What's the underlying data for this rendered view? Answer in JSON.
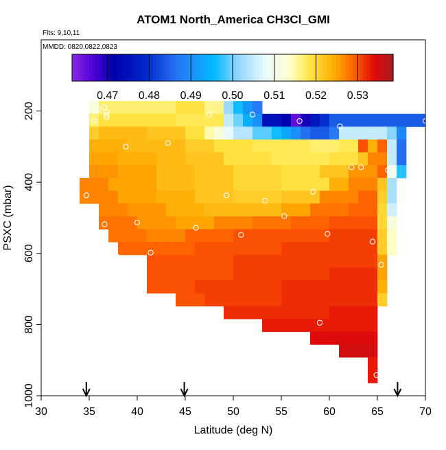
{
  "chart_data": {
    "type": "heatmap",
    "title": "ATOM1 North_America CH3Cl_GMI",
    "flights_label": "Flts: 9,10,11",
    "mmdd_label": "MMDD: 0820,0822,0823",
    "xlabel": "Latitude (deg N)",
    "ylabel": "PSXC (mbar)",
    "xlim": [
      30,
      70
    ],
    "ylim": [
      1000,
      0
    ],
    "x_ticks": [
      30,
      35,
      40,
      45,
      50,
      55,
      60,
      65,
      70
    ],
    "y_ticks": [
      200,
      400,
      600,
      800,
      1000
    ],
    "colorbar": {
      "ticks": [
        "0.47",
        "0.48",
        "0.49",
        "0.50",
        "0.51",
        "0.52",
        "0.53"
      ],
      "tick_values": [
        0.47,
        0.48,
        0.49,
        0.5,
        0.51,
        0.52,
        0.53
      ],
      "range": [
        0.4615,
        0.5385
      ]
    },
    "lat_bin_deg": 1,
    "pressure_bin_mbar": 36,
    "rows": [
      {
        "p": 190,
        "segments": [
          [
            35,
            36,
            0.512
          ],
          [
            36,
            44,
            0.517
          ],
          [
            44,
            47,
            0.519
          ],
          [
            47,
            49,
            0.516
          ],
          [
            49,
            50,
            0.502
          ],
          [
            50,
            51,
            0.496
          ],
          [
            51,
            52,
            0.491
          ],
          [
            52,
            53,
            0.487
          ]
        ]
      },
      {
        "p": 226,
        "segments": [
          [
            35,
            36,
            0.517
          ],
          [
            36,
            44,
            0.519
          ],
          [
            44,
            49,
            0.518
          ],
          [
            49,
            50,
            0.505
          ],
          [
            50,
            51,
            0.5
          ],
          [
            51,
            52,
            0.494
          ],
          [
            52,
            53,
            0.49
          ],
          [
            53,
            55,
            0.475
          ],
          [
            55,
            56,
            0.472
          ],
          [
            56,
            57,
            0.465
          ],
          [
            57,
            58,
            0.47
          ],
          [
            58,
            59,
            0.476
          ],
          [
            59,
            60,
            0.48
          ],
          [
            60,
            70,
            0.484
          ]
        ]
      },
      {
        "p": 262,
        "segments": [
          [
            35,
            36,
            0.521
          ],
          [
            36,
            41,
            0.523
          ],
          [
            41,
            45,
            0.522
          ],
          [
            45,
            47,
            0.519
          ],
          [
            47,
            48,
            0.515
          ],
          [
            48,
            49,
            0.512
          ],
          [
            49,
            50,
            0.508
          ],
          [
            50,
            52,
            0.504
          ],
          [
            52,
            54,
            0.499
          ],
          [
            54,
            55,
            0.496
          ],
          [
            55,
            56,
            0.493
          ],
          [
            56,
            57,
            0.49
          ],
          [
            57,
            58,
            0.486
          ],
          [
            58,
            60,
            0.484
          ],
          [
            60,
            61,
            0.487
          ],
          [
            61,
            66,
            0.505
          ],
          [
            66,
            67,
            0.501
          ],
          [
            67,
            68,
            0.489
          ]
        ]
      },
      {
        "p": 298,
        "segments": [
          [
            35,
            39,
            0.524
          ],
          [
            39,
            45,
            0.523
          ],
          [
            45,
            48,
            0.521
          ],
          [
            48,
            52,
            0.519
          ],
          [
            52,
            58,
            0.518
          ],
          [
            58,
            61,
            0.517
          ],
          [
            61,
            63,
            0.518
          ],
          [
            63,
            64,
            0.53
          ],
          [
            64,
            65,
            0.524
          ],
          [
            65,
            66,
            0.529
          ],
          [
            66,
            67,
            0.505
          ],
          [
            67,
            68,
            0.486
          ]
        ]
      },
      {
        "p": 334,
        "segments": [
          [
            35,
            38,
            0.525
          ],
          [
            38,
            42,
            0.524
          ],
          [
            42,
            45,
            0.523
          ],
          [
            45,
            49,
            0.522
          ],
          [
            49,
            54,
            0.519
          ],
          [
            54,
            60,
            0.518
          ],
          [
            60,
            63,
            0.519
          ],
          [
            63,
            64,
            0.522
          ],
          [
            64,
            66,
            0.527
          ],
          [
            66,
            67,
            0.505
          ],
          [
            67,
            68,
            0.486
          ]
        ]
      },
      {
        "p": 370,
        "segments": [
          [
            35,
            38,
            0.526
          ],
          [
            38,
            42,
            0.525
          ],
          [
            42,
            46,
            0.523
          ],
          [
            46,
            50,
            0.522
          ],
          [
            50,
            55,
            0.52
          ],
          [
            55,
            59,
            0.519
          ],
          [
            59,
            62,
            0.522
          ],
          [
            62,
            65,
            0.526
          ],
          [
            65,
            66,
            0.529
          ],
          [
            66,
            67,
            0.51
          ],
          [
            67,
            68,
            0.497
          ]
        ]
      },
      {
        "p": 406,
        "segments": [
          [
            34,
            37,
            0.527
          ],
          [
            37,
            42,
            0.525
          ],
          [
            42,
            46,
            0.523
          ],
          [
            46,
            50,
            0.522
          ],
          [
            50,
            55,
            0.52
          ],
          [
            55,
            60,
            0.519
          ],
          [
            60,
            62,
            0.524
          ],
          [
            62,
            65,
            0.527
          ],
          [
            65,
            66,
            0.522
          ],
          [
            66,
            67,
            0.503
          ]
        ]
      },
      {
        "p": 442,
        "segments": [
          [
            34,
            38,
            0.527
          ],
          [
            38,
            42,
            0.525
          ],
          [
            42,
            46,
            0.524
          ],
          [
            46,
            50,
            0.522
          ],
          [
            50,
            55,
            0.521
          ],
          [
            55,
            59,
            0.522
          ],
          [
            59,
            63,
            0.527
          ],
          [
            63,
            65,
            0.529
          ],
          [
            65,
            66,
            0.521
          ],
          [
            66,
            67,
            0.503
          ]
        ]
      },
      {
        "p": 478,
        "segments": [
          [
            36,
            39,
            0.527
          ],
          [
            39,
            43,
            0.526
          ],
          [
            43,
            47,
            0.524
          ],
          [
            47,
            51,
            0.523
          ],
          [
            51,
            55,
            0.523
          ],
          [
            55,
            58,
            0.525
          ],
          [
            58,
            62,
            0.528
          ],
          [
            62,
            65,
            0.529
          ],
          [
            65,
            66,
            0.52
          ],
          [
            66,
            67,
            0.506
          ]
        ]
      },
      {
        "p": 514,
        "segments": [
          [
            36,
            40,
            0.528
          ],
          [
            40,
            44,
            0.526
          ],
          [
            44,
            48,
            0.525
          ],
          [
            48,
            52,
            0.527
          ],
          [
            52,
            56,
            0.528
          ],
          [
            56,
            60,
            0.529
          ],
          [
            60,
            65,
            0.53
          ],
          [
            65,
            66,
            0.52
          ],
          [
            66,
            67,
            0.512
          ]
        ]
      },
      {
        "p": 550,
        "segments": [
          [
            37,
            41,
            0.528
          ],
          [
            41,
            45,
            0.527
          ],
          [
            45,
            50,
            0.529
          ],
          [
            50,
            55,
            0.53
          ],
          [
            55,
            60,
            0.53
          ],
          [
            60,
            65,
            0.531
          ],
          [
            65,
            66,
            0.521
          ],
          [
            66,
            67,
            0.514
          ]
        ]
      },
      {
        "p": 586,
        "segments": [
          [
            38,
            41,
            0.529
          ],
          [
            41,
            46,
            0.529
          ],
          [
            46,
            50,
            0.53
          ],
          [
            50,
            55,
            0.53
          ],
          [
            55,
            60,
            0.531
          ],
          [
            60,
            65,
            0.531
          ],
          [
            65,
            66,
            0.521
          ],
          [
            66,
            67,
            0.514
          ]
        ]
      },
      {
        "p": 622,
        "segments": [
          [
            41,
            46,
            0.53
          ],
          [
            46,
            50,
            0.53
          ],
          [
            50,
            55,
            0.531
          ],
          [
            55,
            60,
            0.531
          ],
          [
            60,
            65,
            0.531
          ],
          [
            65,
            66,
            0.525
          ]
        ]
      },
      {
        "p": 658,
        "segments": [
          [
            41,
            46,
            0.53
          ],
          [
            46,
            50,
            0.53
          ],
          [
            50,
            55,
            0.531
          ],
          [
            55,
            60,
            0.531
          ],
          [
            60,
            65,
            0.532
          ],
          [
            65,
            66,
            0.525
          ]
        ]
      },
      {
        "p": 694,
        "segments": [
          [
            41,
            46,
            0.53
          ],
          [
            46,
            50,
            0.531
          ],
          [
            50,
            55,
            0.531
          ],
          [
            55,
            60,
            0.532
          ],
          [
            60,
            65,
            0.532
          ],
          [
            65,
            66,
            0.524
          ]
        ]
      },
      {
        "p": 730,
        "segments": [
          [
            44,
            47,
            0.53
          ],
          [
            47,
            50,
            0.531
          ],
          [
            50,
            55,
            0.531
          ],
          [
            55,
            60,
            0.532
          ],
          [
            60,
            65,
            0.532
          ],
          [
            65,
            66,
            0.521
          ]
        ]
      },
      {
        "p": 766,
        "segments": [
          [
            49,
            52,
            0.532
          ],
          [
            52,
            56,
            0.532
          ],
          [
            56,
            60,
            0.532
          ],
          [
            60,
            65,
            0.533
          ]
        ]
      },
      {
        "p": 802,
        "segments": [
          [
            53,
            56,
            0.533
          ],
          [
            56,
            60,
            0.533
          ],
          [
            60,
            65,
            0.533
          ]
        ]
      },
      {
        "p": 838,
        "segments": [
          [
            58,
            61,
            0.534
          ],
          [
            61,
            65,
            0.534
          ]
        ]
      },
      {
        "p": 874,
        "segments": [
          [
            61,
            65,
            0.535
          ]
        ]
      },
      {
        "p": 910,
        "segments": [
          [
            64,
            65,
            0.533
          ]
        ]
      },
      {
        "p": 946,
        "segments": [
          [
            64,
            65,
            0.533
          ]
        ]
      }
    ],
    "observations": [
      {
        "lat": 35.5,
        "p": 228
      },
      {
        "lat": 36.0,
        "p": 195
      },
      {
        "lat": 36.6,
        "p": 190
      },
      {
        "lat": 36.8,
        "p": 203
      },
      {
        "lat": 36.8,
        "p": 212
      },
      {
        "lat": 36.8,
        "p": 218
      },
      {
        "lat": 38.8,
        "p": 300
      },
      {
        "lat": 43.2,
        "p": 290
      },
      {
        "lat": 47.5,
        "p": 210
      },
      {
        "lat": 52.0,
        "p": 210
      },
      {
        "lat": 56.9,
        "p": 228
      },
      {
        "lat": 61.1,
        "p": 243
      },
      {
        "lat": 70.0,
        "p": 228
      },
      {
        "lat": 62.3,
        "p": 358
      },
      {
        "lat": 63.3,
        "p": 358
      },
      {
        "lat": 66.1,
        "p": 366
      },
      {
        "lat": 34.7,
        "p": 437
      },
      {
        "lat": 49.3,
        "p": 437
      },
      {
        "lat": 53.3,
        "p": 452
      },
      {
        "lat": 58.3,
        "p": 427
      },
      {
        "lat": 55.3,
        "p": 495
      },
      {
        "lat": 36.6,
        "p": 518
      },
      {
        "lat": 40.0,
        "p": 513
      },
      {
        "lat": 46.1,
        "p": 528
      },
      {
        "lat": 50.8,
        "p": 548
      },
      {
        "lat": 59.8,
        "p": 545
      },
      {
        "lat": 64.5,
        "p": 567
      },
      {
        "lat": 37.8,
        "p": 606
      },
      {
        "lat": 41.4,
        "p": 598
      },
      {
        "lat": 65.4,
        "p": 632
      },
      {
        "lat": 59.0,
        "p": 795
      },
      {
        "lat": 64.9,
        "p": 942
      }
    ],
    "arrows_at_lat": [
      34.7,
      44.9,
      67.1
    ]
  }
}
